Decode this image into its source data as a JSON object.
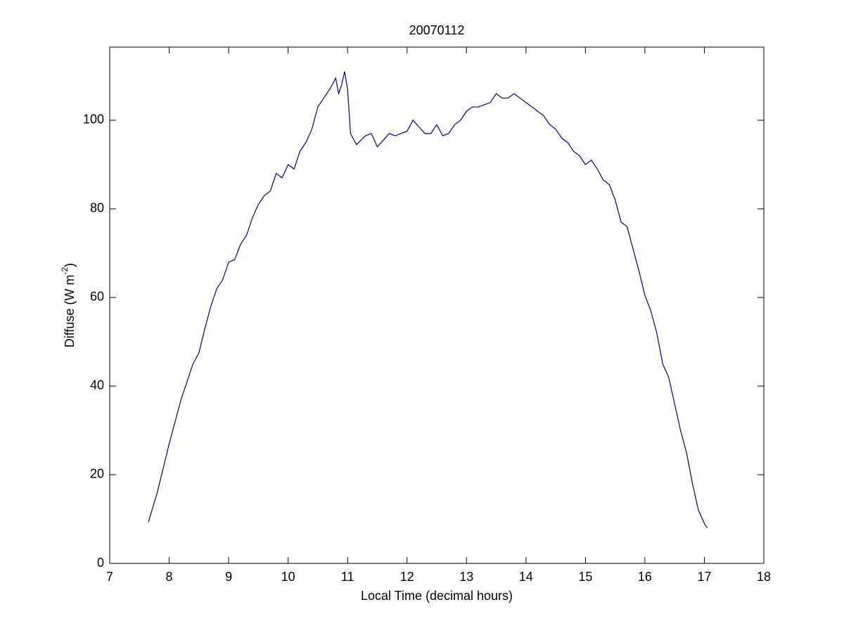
{
  "chart_data": {
    "type": "line",
    "title": "20070112",
    "x_label": "Local Time (decimal hours)",
    "y_label": {
      "text": "Diffuse (W m",
      "superscript": "-2",
      "suffix": ")"
    },
    "xlim": [
      7,
      18
    ],
    "xticks": [
      7,
      8,
      9,
      10,
      11,
      12,
      13,
      14,
      15,
      16,
      17,
      18
    ],
    "ylim": [
      0,
      116.5
    ],
    "yticks": [
      0,
      20,
      40,
      60,
      80,
      100
    ],
    "grid": false,
    "x": [
      7.65,
      7.8,
      8.0,
      8.2,
      8.4,
      8.5,
      8.6,
      8.7,
      8.8,
      8.9,
      9.0,
      9.1,
      9.2,
      9.3,
      9.4,
      9.5,
      9.6,
      9.7,
      9.8,
      9.9,
      10.0,
      10.1,
      10.2,
      10.3,
      10.4,
      10.5,
      10.6,
      10.7,
      10.8,
      10.85,
      10.9,
      10.95,
      11.0,
      11.05,
      11.15,
      11.3,
      11.4,
      11.5,
      11.6,
      11.7,
      11.8,
      11.9,
      12.0,
      12.1,
      12.2,
      12.3,
      12.4,
      12.5,
      12.6,
      12.7,
      12.8,
      12.9,
      13.0,
      13.1,
      13.2,
      13.3,
      13.4,
      13.5,
      13.6,
      13.7,
      13.8,
      13.9,
      14.0,
      14.1,
      14.2,
      14.3,
      14.4,
      14.5,
      14.6,
      14.7,
      14.8,
      14.9,
      15.0,
      15.1,
      15.2,
      15.3,
      15.4,
      15.5,
      15.6,
      15.7,
      15.8,
      15.9,
      16.0,
      16.1,
      16.2,
      16.3,
      16.4,
      16.5,
      16.6,
      16.7,
      16.8,
      16.9,
      17.0,
      17.05
    ],
    "series": [
      {
        "color": "#000080",
        "values": [
          9.3,
          16,
          27,
          37,
          45,
          47.5,
          53,
          58,
          62,
          64,
          68,
          68.5,
          72,
          74,
          78,
          81,
          83,
          84,
          88,
          87,
          90,
          89,
          93,
          95,
          98,
          103,
          105,
          107,
          109.5,
          106,
          108,
          111,
          107,
          97,
          94.5,
          96.5,
          97,
          94,
          95.5,
          97,
          96.5,
          97,
          97.5,
          100,
          98.5,
          97,
          97,
          99,
          96.5,
          97,
          99,
          100,
          102,
          103,
          103,
          103.5,
          104,
          106,
          105,
          105,
          106,
          105,
          104,
          103,
          102,
          101,
          99,
          98,
          96,
          95,
          93,
          92,
          90,
          91,
          89,
          86.5,
          85.5,
          82,
          77,
          76,
          71,
          66,
          60.5,
          57,
          52,
          45,
          42,
          36,
          30,
          25,
          18,
          12,
          9,
          8
        ]
      }
    ]
  }
}
